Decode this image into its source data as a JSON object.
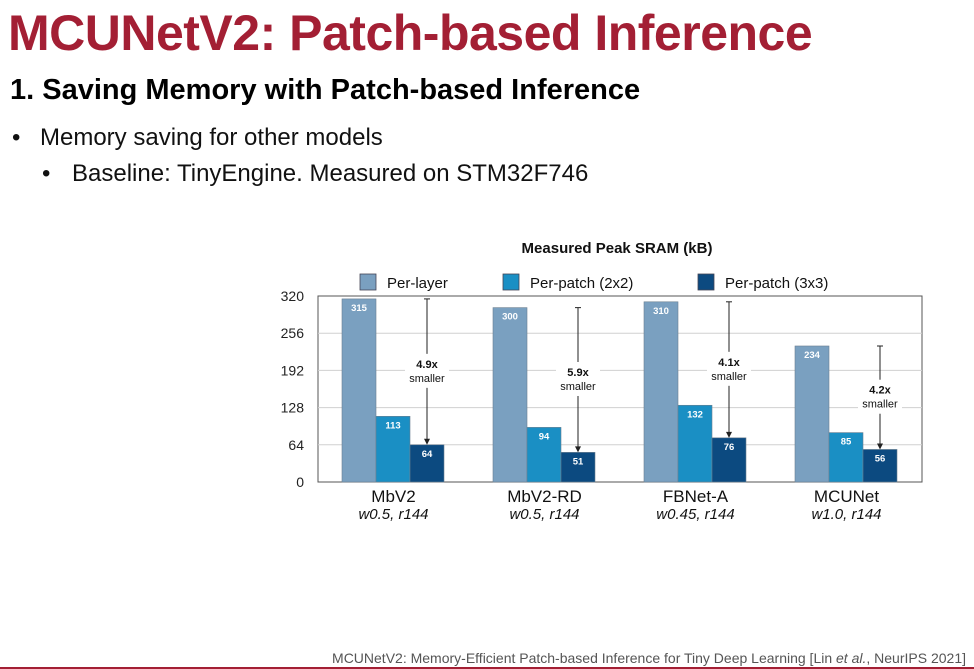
{
  "slide": {
    "title": "MCUNetV2: Patch-based Inference",
    "section": "1. Saving Memory with Patch-based Inference",
    "bullets": [
      {
        "text": "Memory saving for other models",
        "level": 1
      },
      {
        "text": "Baseline: TinyEngine. Measured on STM32F746",
        "level": 2
      }
    ],
    "bullet_glyph": "•",
    "footer": {
      "prefix": "MCUNetV2: Memory-Efficient Patch-based Inference for Tiny Deep Learning [Lin ",
      "etal": "et al.",
      "suffix": ", NeurIPS 2021]"
    }
  },
  "colors": {
    "title": "#a31f34",
    "per_layer": "#7aa0c0",
    "per_patch_2x2": "#1a8fc4",
    "per_patch_3x3": "#0c4a80"
  },
  "chart_data": {
    "type": "bar",
    "title": "Measured Peak SRAM (kB)",
    "categories": [
      "MbV2",
      "MbV2-RD",
      "FBNet-A",
      "MCUNet"
    ],
    "subcategories": [
      "w0.5, r144",
      "w0.5, r144",
      "w0.45, r144",
      "w1.0, r144"
    ],
    "series": [
      {
        "name": "Per-layer",
        "values": [
          315,
          300,
          310,
          234
        ]
      },
      {
        "name": "Per-patch (2x2)",
        "values": [
          113,
          94,
          132,
          85
        ]
      },
      {
        "name": "Per-patch (3x3)",
        "values": [
          64,
          51,
          76,
          56
        ]
      }
    ],
    "ylim": [
      0,
      320
    ],
    "yticks": [
      0,
      64,
      128,
      192,
      256,
      320
    ],
    "grid": true,
    "legend": "top",
    "annotations": [
      {
        "category": "MbV2",
        "ratio": "4.9x",
        "text": "smaller"
      },
      {
        "category": "MbV2-RD",
        "ratio": "5.9x",
        "text": "smaller"
      },
      {
        "category": "FBNet-A",
        "ratio": "4.1x",
        "text": "smaller"
      },
      {
        "category": "MCUNet",
        "ratio": "4.2x",
        "text": "smaller"
      }
    ]
  }
}
